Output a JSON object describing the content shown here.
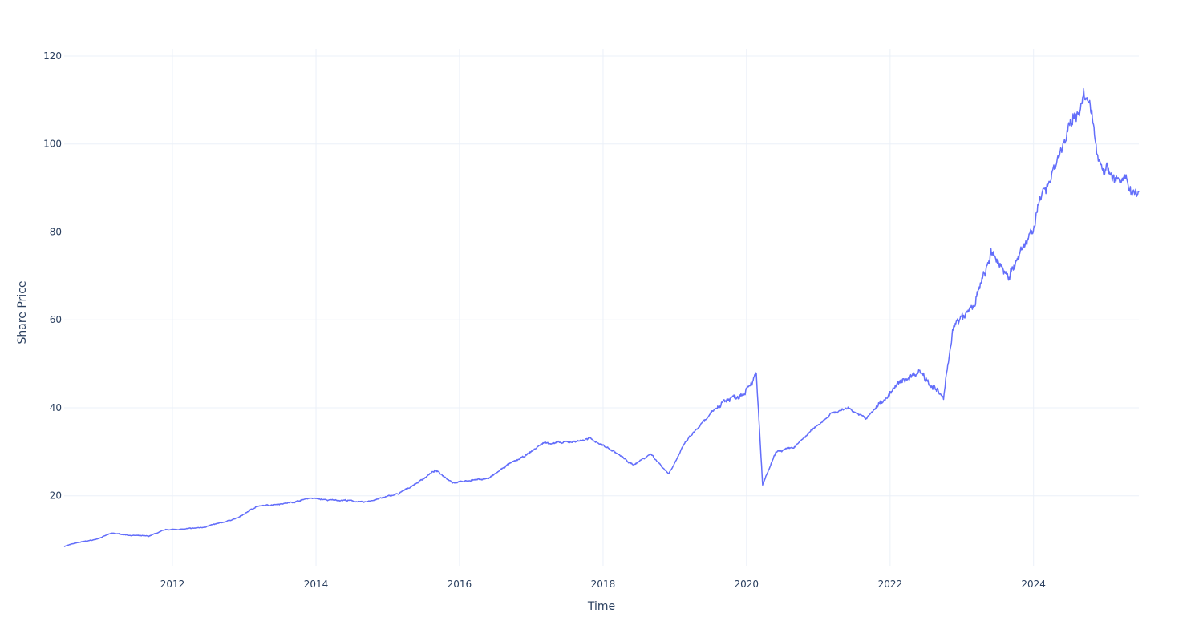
{
  "chart_data": {
    "type": "line",
    "title": "",
    "xlabel": "Time",
    "ylabel": "Share Price",
    "x_ticks": [
      "2012",
      "2014",
      "2016",
      "2018",
      "2020",
      "2022",
      "2024"
    ],
    "y_ticks": [
      20,
      40,
      60,
      80,
      100,
      120
    ],
    "xlim": [
      "2010-06-29",
      "2025-06-20"
    ],
    "ylim": [
      4.0,
      121.0
    ],
    "grid": true,
    "legend": "none",
    "line_color": "#636efa",
    "series": [
      {
        "x": [
          "2010-06-29",
          "2010-09-01",
          "2010-12-01",
          "2011-03-01",
          "2011-06-01",
          "2011-09-01",
          "2011-12-01",
          "2012-03-01",
          "2012-06-01",
          "2012-09-01",
          "2012-12-01",
          "2013-03-01",
          "2013-06-01",
          "2013-09-01",
          "2013-12-01",
          "2014-03-01",
          "2014-06-01",
          "2014-09-01",
          "2014-12-01",
          "2015-03-01",
          "2015-06-01",
          "2015-09-01",
          "2015-12-01",
          "2016-03-01",
          "2016-06-01",
          "2016-09-01",
          "2016-12-01",
          "2017-03-01",
          "2017-06-01",
          "2017-09-01",
          "2017-11-01",
          "2018-03-01",
          "2018-06-01",
          "2018-09-01",
          "2018-12-01",
          "2019-03-01",
          "2019-06-01",
          "2019-09-01",
          "2019-12-01",
          "2020-02-20",
          "2020-03-23",
          "2020-06-01",
          "2020-09-01",
          "2020-12-01",
          "2021-03-01",
          "2021-06-01",
          "2021-09-01",
          "2021-12-01",
          "2022-03-01",
          "2022-06-01",
          "2022-09-30",
          "2022-11-15",
          "2023-03-01",
          "2023-06-01",
          "2023-09-01",
          "2023-12-01",
          "2024-03-01",
          "2024-06-01",
          "2024-09-15",
          "2024-10-10",
          "2024-12-01",
          "2025-03-01",
          "2025-06-20"
        ],
        "y": [
          8.5,
          9.3,
          10.0,
          11.5,
          11.0,
          10.8,
          12.3,
          12.4,
          12.8,
          13.8,
          15.0,
          17.5,
          18.0,
          18.5,
          19.5,
          19.0,
          19.0,
          18.5,
          19.5,
          20.5,
          23.0,
          25.8,
          23.0,
          23.5,
          24.0,
          27.0,
          29.0,
          32.0,
          32.0,
          32.5,
          33.0,
          30.0,
          27.0,
          29.5,
          25.0,
          32.5,
          37.0,
          41.5,
          43.0,
          47.5,
          22.5,
          30.0,
          31.0,
          35.0,
          38.5,
          40.0,
          37.5,
          42.0,
          46.0,
          48.5,
          42.0,
          58.0,
          63.0,
          75.0,
          70.0,
          78.0,
          90.0,
          100.0,
          111.0,
          109.0,
          96.0,
          92.0,
          89.0
        ]
      }
    ]
  }
}
